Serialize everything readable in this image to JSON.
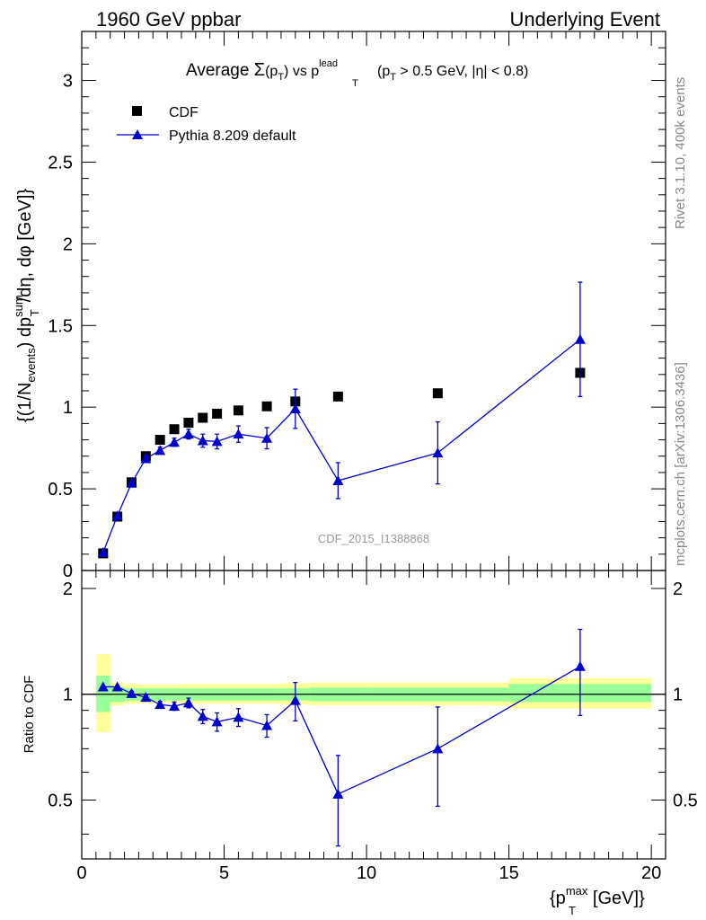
{
  "header": {
    "left": "1960 GeV ppbar",
    "right": "Underlying Event"
  },
  "side_labels": {
    "rivet": "Rivet 3.1.10,  400k events",
    "mcplots": "mcplots.cern.ch [arXiv:1306.3436]"
  },
  "analysis_id": "CDF_2015_I1388868",
  "chart_data": {
    "type": "scatter",
    "title_parts": {
      "prefix": "Average ",
      "sigma": "Σ",
      "pt_open": "(p",
      "sub_t": "T",
      "pt_close": ")",
      "vs": " vs ",
      "p": "p",
      "sup_lead": "lead",
      "cut_open": "(p",
      "cut_close": " > 0.5 GeV, |η| < 0.8)"
    },
    "ylabel_parts": {
      "open": "{(1/N",
      "sub_events": "events",
      "mid": ") dp",
      "sup_sum": "sum",
      "sub_t": "T",
      "close": "/dη, dφ [GeV]}"
    },
    "xlabel_parts": {
      "open": "{p",
      "sup_max": "max",
      "sub_t": "T",
      "close": " [GeV]}"
    },
    "ratio_ylabel": "Ratio to CDF",
    "xlim": [
      0,
      20.5
    ],
    "ylim": [
      0,
      3.3
    ],
    "ratio_ylim": [
      0.34,
      2.25
    ],
    "x_ticks": [
      "0",
      "5",
      "10",
      "15",
      "20"
    ],
    "y_ticks": [
      "0",
      "0.5",
      "1",
      "1.5",
      "2",
      "2.5",
      "3"
    ],
    "ratio_ticks": [
      "0.5",
      "1",
      "2"
    ],
    "legend_position": "top-left",
    "series": [
      {
        "name": "CDF",
        "marker": "square",
        "color": "#000000",
        "x": [
          0.75,
          1.25,
          1.75,
          2.25,
          2.75,
          3.25,
          3.75,
          4.25,
          4.75,
          5.5,
          6.5,
          7.5,
          9.0,
          12.5,
          17.5
        ],
        "y": [
          0.105,
          0.33,
          0.54,
          0.7,
          0.8,
          0.865,
          0.905,
          0.935,
          0.96,
          0.98,
          1.005,
          1.035,
          1.065,
          1.085,
          1.21
        ]
      },
      {
        "name": "Pythia 8.209 default",
        "marker": "triangle",
        "color": "#0000cc",
        "x": [
          0.75,
          1.25,
          1.75,
          2.25,
          2.75,
          3.25,
          3.75,
          4.25,
          4.75,
          5.5,
          6.5,
          7.5,
          9.0,
          12.5,
          17.5
        ],
        "y": [
          0.11,
          0.335,
          0.535,
          0.685,
          0.735,
          0.785,
          0.835,
          0.795,
          0.79,
          0.835,
          0.81,
          0.99,
          0.55,
          0.72,
          1.415
        ],
        "yerr": [
          0.005,
          0.01,
          0.01,
          0.015,
          0.02,
          0.025,
          0.03,
          0.04,
          0.045,
          0.05,
          0.065,
          0.12,
          0.11,
          0.19,
          0.35
        ]
      }
    ],
    "ratio": {
      "x": [
        0.75,
        1.25,
        1.75,
        2.25,
        2.75,
        3.25,
        3.75,
        4.25,
        4.75,
        5.5,
        6.5,
        7.5,
        9.0,
        12.5,
        17.5
      ],
      "y": [
        1.05,
        1.05,
        1.005,
        0.98,
        0.935,
        0.925,
        0.945,
        0.865,
        0.835,
        0.86,
        0.815,
        0.96,
        0.52,
        0.7,
        1.2
      ],
      "yerr": [
        0.01,
        0.01,
        0.015,
        0.015,
        0.02,
        0.025,
        0.03,
        0.04,
        0.05,
        0.05,
        0.06,
        0.12,
        0.15,
        0.22,
        0.33
      ],
      "bands": [
        {
          "x0": 0.5,
          "x1": 1.0,
          "g": [
            0.89,
            1.13
          ],
          "y": [
            0.78,
            1.3
          ]
        },
        {
          "x0": 1.0,
          "x1": 1.5,
          "g": [
            0.95,
            1.05
          ],
          "y": [
            0.93,
            1.08
          ]
        },
        {
          "x0": 1.5,
          "x1": 2.0,
          "g": [
            0.96,
            1.04
          ],
          "y": [
            0.94,
            1.07
          ]
        },
        {
          "x0": 2.0,
          "x1": 3.5,
          "g": [
            0.96,
            1.04
          ],
          "y": [
            0.945,
            1.065
          ]
        },
        {
          "x0": 3.5,
          "x1": 7.0,
          "g": [
            0.96,
            1.04
          ],
          "y": [
            0.94,
            1.07
          ]
        },
        {
          "x0": 7.0,
          "x1": 8.0,
          "g": [
            0.96,
            1.04
          ],
          "y": [
            0.935,
            1.075
          ]
        },
        {
          "x0": 8.0,
          "x1": 10.0,
          "g": [
            0.955,
            1.045
          ],
          "y": [
            0.93,
            1.08
          ]
        },
        {
          "x0": 10.0,
          "x1": 15.0,
          "g": [
            0.955,
            1.045
          ],
          "y": [
            0.93,
            1.08
          ]
        },
        {
          "x0": 15.0,
          "x1": 20.0,
          "g": [
            0.95,
            1.07
          ],
          "y": [
            0.91,
            1.11
          ]
        }
      ]
    }
  }
}
